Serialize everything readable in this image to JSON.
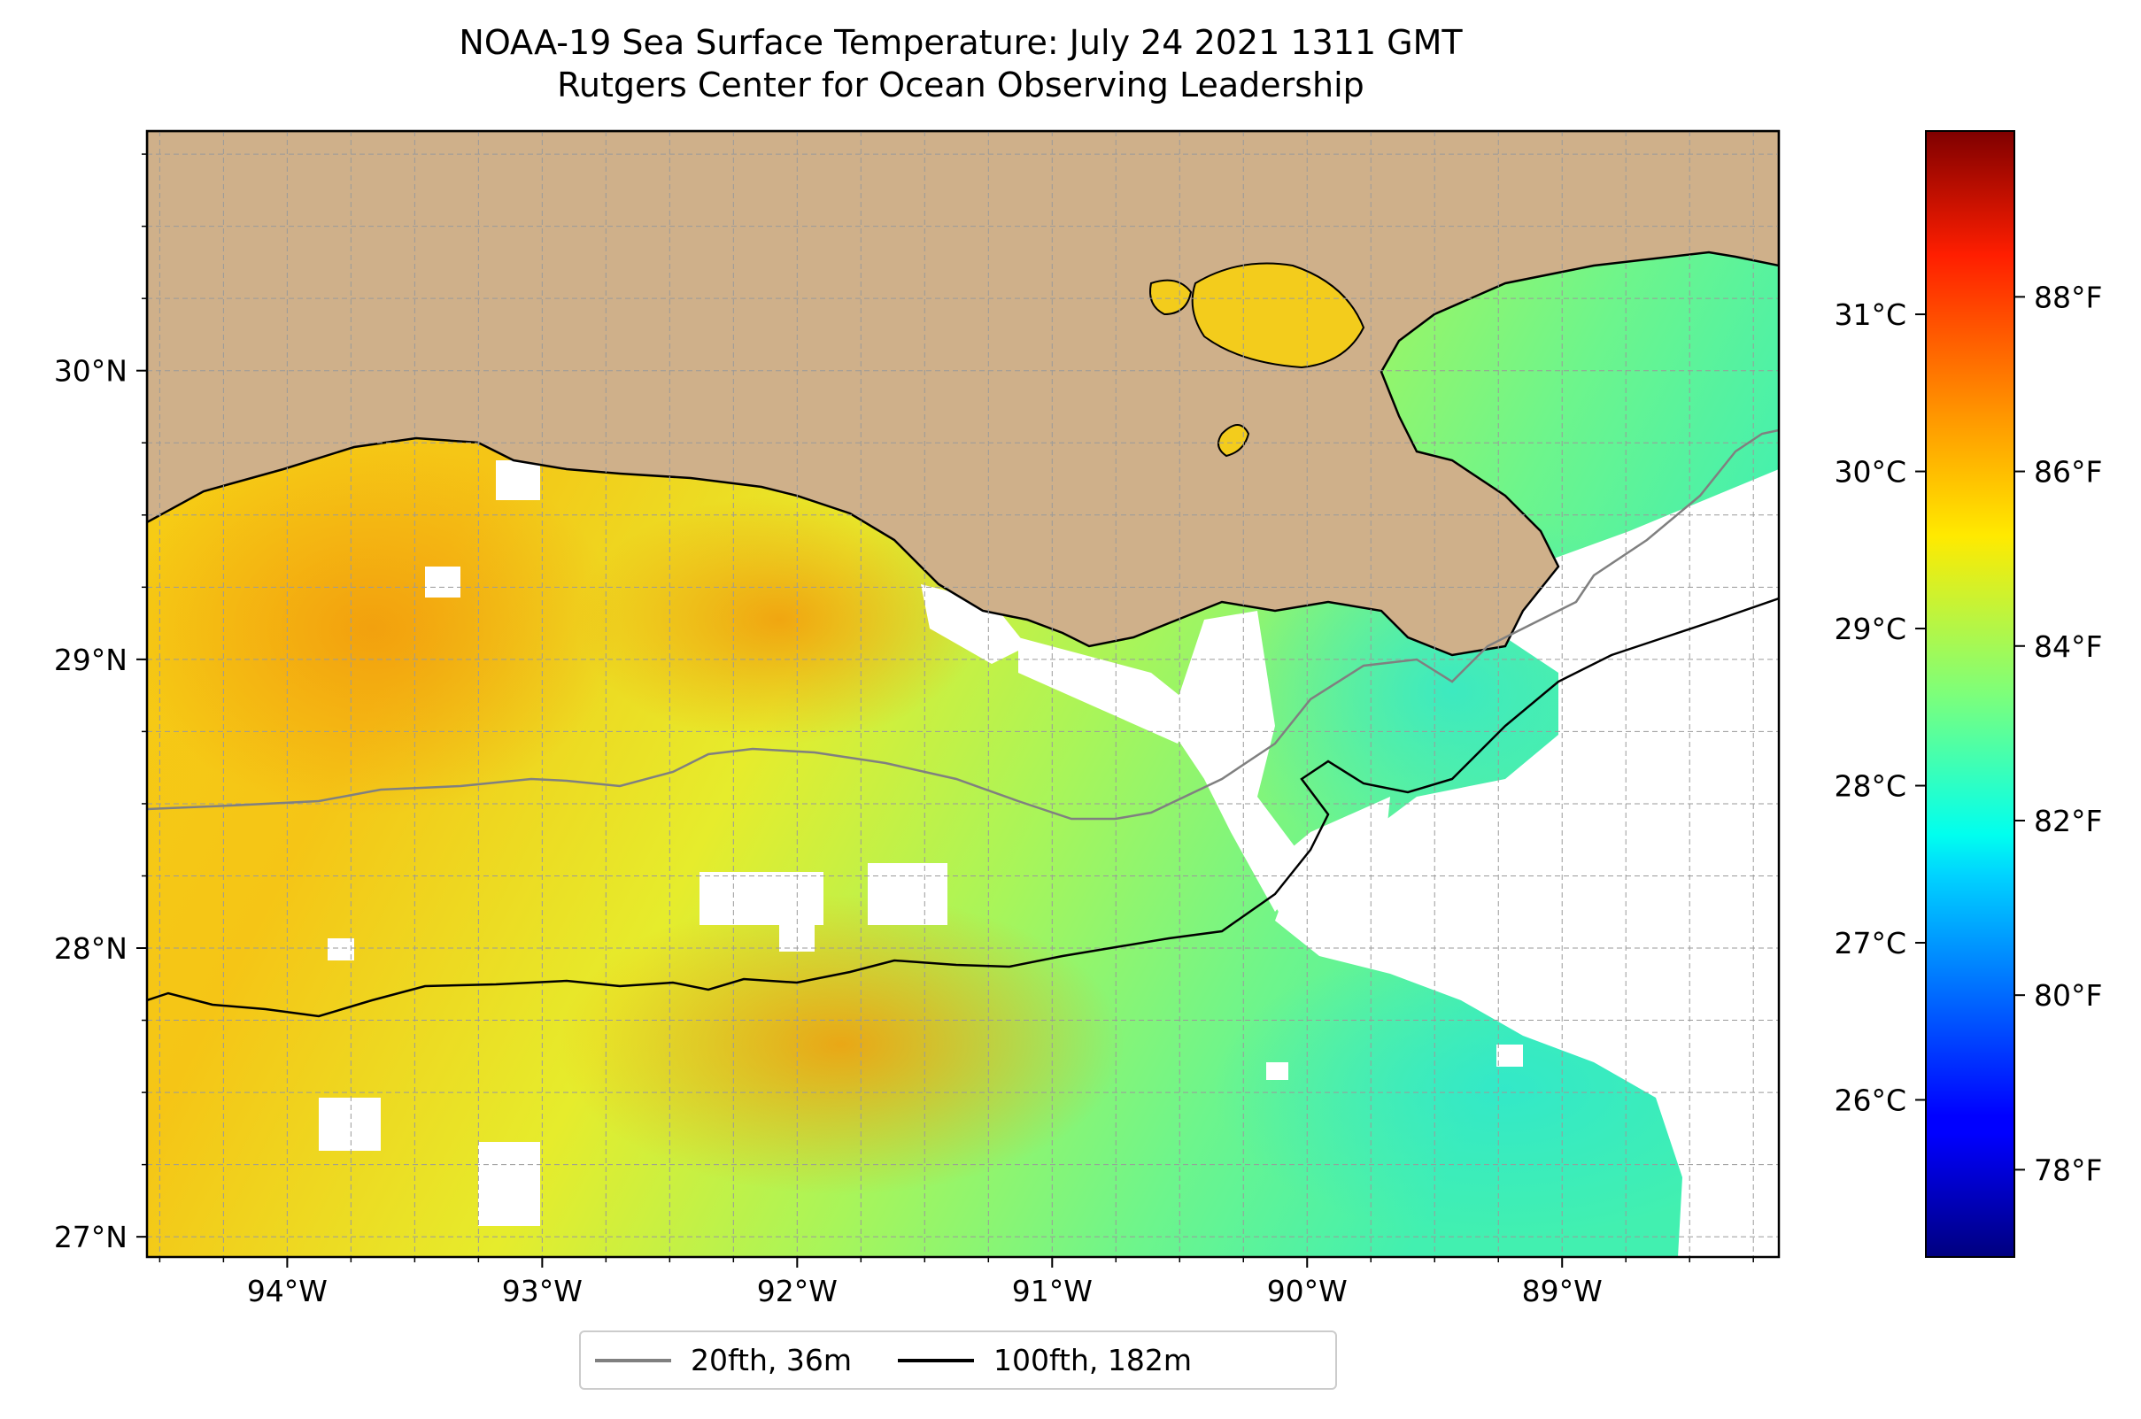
{
  "title": {
    "line1": "NOAA-19 Sea Surface Temperature: July 24 2021 1311 GMT",
    "line2": "Rutgers Center for Ocean Observing Leadership"
  },
  "map": {
    "lon_range": [
      -94.55,
      -88.15
    ],
    "lat_range": [
      26.93,
      30.83
    ],
    "lon_ticks": [
      {
        "value": -94,
        "label": "94°W"
      },
      {
        "value": -93,
        "label": "93°W"
      },
      {
        "value": -92,
        "label": "92°W"
      },
      {
        "value": -91,
        "label": "91°W"
      },
      {
        "value": -90,
        "label": "90°W"
      },
      {
        "value": -89,
        "label": "89°W"
      }
    ],
    "lat_ticks": [
      {
        "value": 27,
        "label": "27°N"
      },
      {
        "value": 28,
        "label": "28°N"
      },
      {
        "value": 29,
        "label": "29°N"
      },
      {
        "value": 30,
        "label": "30°N"
      }
    ],
    "grid": "dashed, every 0.25°",
    "land_color": "#cfb08a",
    "cloud_color": "#ffffff"
  },
  "colorbar": {
    "colormap": "jet",
    "range_f": [
      77.0,
      89.9
    ],
    "celsius_ticks": [
      {
        "value": 26,
        "label": "26°C"
      },
      {
        "value": 27,
        "label": "27°C"
      },
      {
        "value": 28,
        "label": "28°C"
      },
      {
        "value": 29,
        "label": "29°C"
      },
      {
        "value": 30,
        "label": "30°C"
      },
      {
        "value": 31,
        "label": "31°C"
      }
    ],
    "fahrenheit_ticks": [
      {
        "value": 78,
        "label": "78°F"
      },
      {
        "value": 80,
        "label": "80°F"
      },
      {
        "value": 82,
        "label": "82°F"
      },
      {
        "value": 84,
        "label": "84°F"
      },
      {
        "value": 86,
        "label": "86°F"
      },
      {
        "value": 88,
        "label": "88°F"
      }
    ]
  },
  "legend": {
    "items": [
      {
        "label": "20fth, 36m",
        "color": "#808080"
      },
      {
        "label": "100fth, 182m",
        "color": "#000000"
      }
    ]
  }
}
